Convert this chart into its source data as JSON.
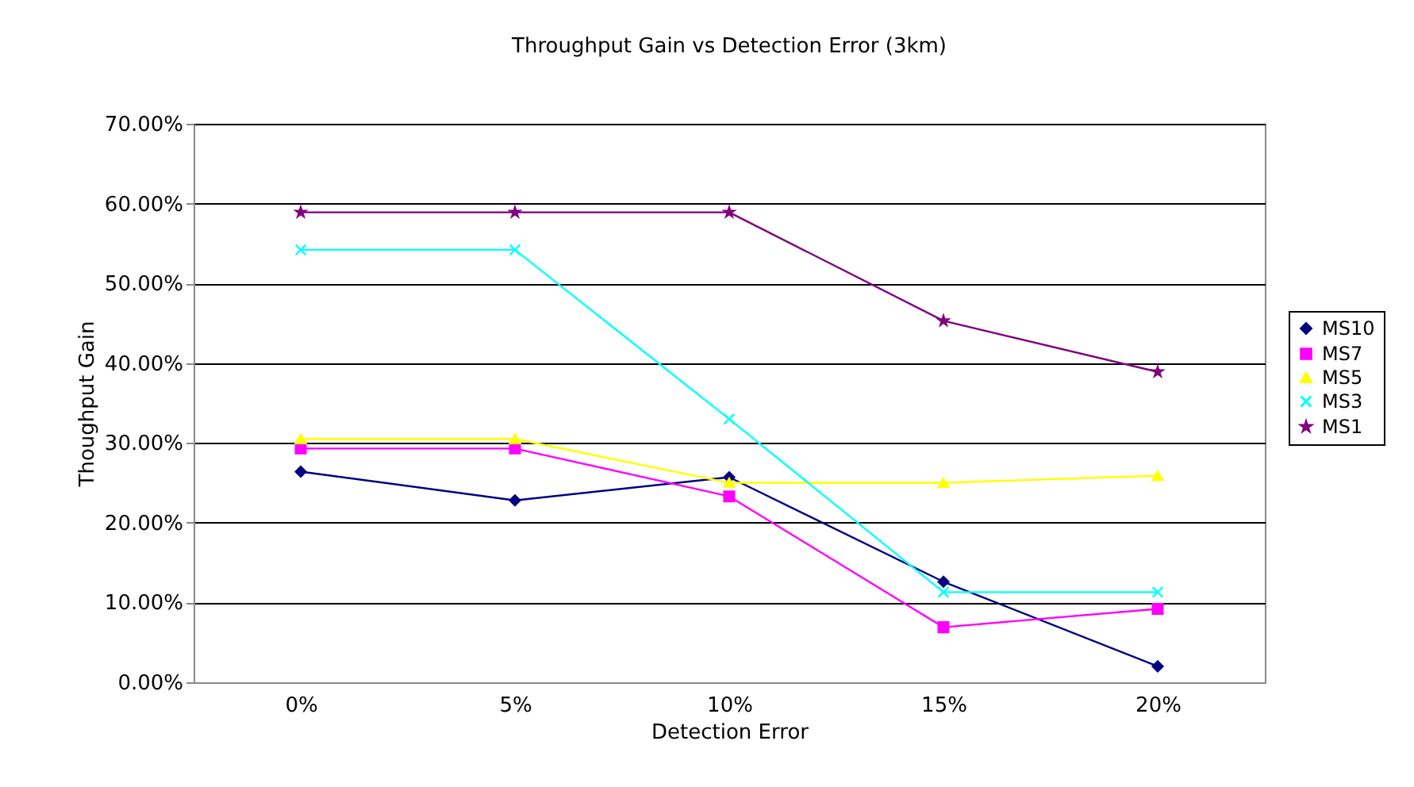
{
  "chart_data": {
    "type": "line",
    "title": "Throughput Gain vs Detection Error (3km)",
    "xlabel": "Detection Error",
    "ylabel": "Thoughput Gain",
    "categories": [
      "0%",
      "5%",
      "10%",
      "15%",
      "20%"
    ],
    "series": [
      {
        "name": "MS10",
        "color": "#000080",
        "marker": "diamond",
        "values": [
          26.4,
          22.8,
          25.7,
          12.6,
          2.0
        ]
      },
      {
        "name": "MS7",
        "color": "#ff00ff",
        "marker": "square",
        "values": [
          29.3,
          29.3,
          23.3,
          6.9,
          9.2
        ]
      },
      {
        "name": "MS5",
        "color": "#ffff00",
        "marker": "triangle",
        "values": [
          30.5,
          30.5,
          25.0,
          25.0,
          25.9
        ]
      },
      {
        "name": "MS3",
        "color": "#00ffff",
        "marker": "cross",
        "values": [
          54.2,
          54.2,
          33.0,
          11.3,
          11.3
        ]
      },
      {
        "name": "MS1",
        "color": "#800080",
        "marker": "star",
        "values": [
          58.9,
          58.9,
          58.9,
          45.3,
          38.9
        ]
      }
    ],
    "ylim": [
      0,
      70
    ],
    "yticks": [
      {
        "value": 0,
        "label": "0.00%"
      },
      {
        "value": 10,
        "label": "10.00%"
      },
      {
        "value": 20,
        "label": "20.00%"
      },
      {
        "value": 30,
        "label": "30.00%"
      },
      {
        "value": 40,
        "label": "40.00%"
      },
      {
        "value": 50,
        "label": "50.00%"
      },
      {
        "value": 60,
        "label": "60.00%"
      },
      {
        "value": 70,
        "label": "70.00%"
      }
    ],
    "grid": "y",
    "legend": "right",
    "line_style": "solid"
  }
}
